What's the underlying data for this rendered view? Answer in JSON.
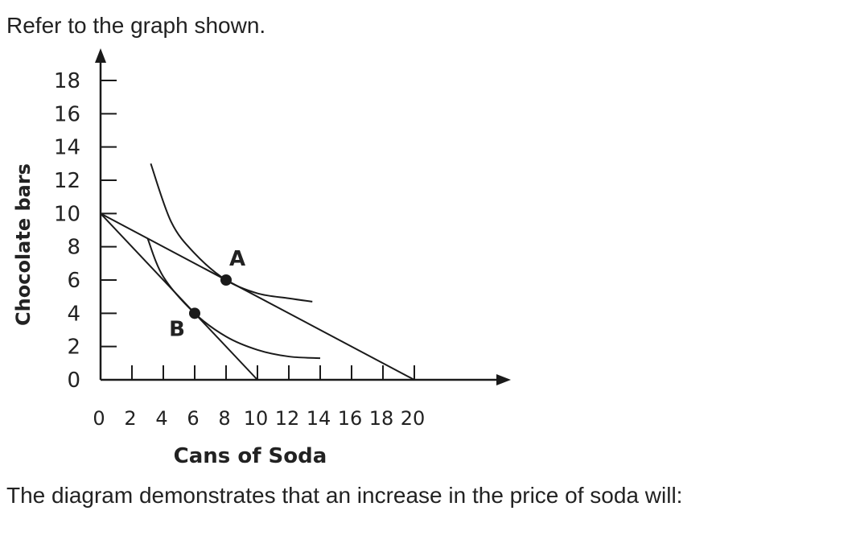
{
  "prompt": "Refer to the graph shown.",
  "question": "The diagram demonstrates that an increase in the price of soda will:",
  "chart_data": {
    "type": "line",
    "xlabel": "Cans of Soda",
    "ylabel": "Chocolate bars",
    "xlim": [
      0,
      20
    ],
    "ylim": [
      0,
      18
    ],
    "x_ticks": [
      0,
      2,
      4,
      6,
      8,
      10,
      12,
      14,
      16,
      18,
      20
    ],
    "y_ticks": [
      0,
      2,
      4,
      6,
      8,
      10,
      12,
      14,
      16,
      18
    ],
    "grid": false,
    "series": [
      {
        "kind": "budget-line",
        "points": [
          [
            0,
            10
          ],
          [
            20,
            0
          ]
        ]
      },
      {
        "kind": "budget-line",
        "points": [
          [
            0,
            10
          ],
          [
            10,
            0
          ]
        ]
      },
      {
        "kind": "indifference-curve",
        "points": [
          [
            3.2,
            13
          ],
          [
            4.5,
            9.5
          ],
          [
            6,
            7.6
          ],
          [
            8,
            6
          ],
          [
            10,
            5.2
          ],
          [
            12,
            4.9
          ],
          [
            13.5,
            4.7
          ]
        ]
      },
      {
        "kind": "indifference-curve",
        "points": [
          [
            3,
            8.5
          ],
          [
            4,
            6.2
          ],
          [
            6,
            4
          ],
          [
            8,
            2.6
          ],
          [
            10,
            1.8
          ],
          [
            12,
            1.4
          ],
          [
            14,
            1.3
          ]
        ]
      }
    ],
    "points": [
      {
        "label": "A",
        "x": 8,
        "y": 6
      },
      {
        "label": "B",
        "x": 6,
        "y": 4
      }
    ],
    "colors": {
      "ink": "#1a1a1a",
      "text": "#222222"
    }
  }
}
